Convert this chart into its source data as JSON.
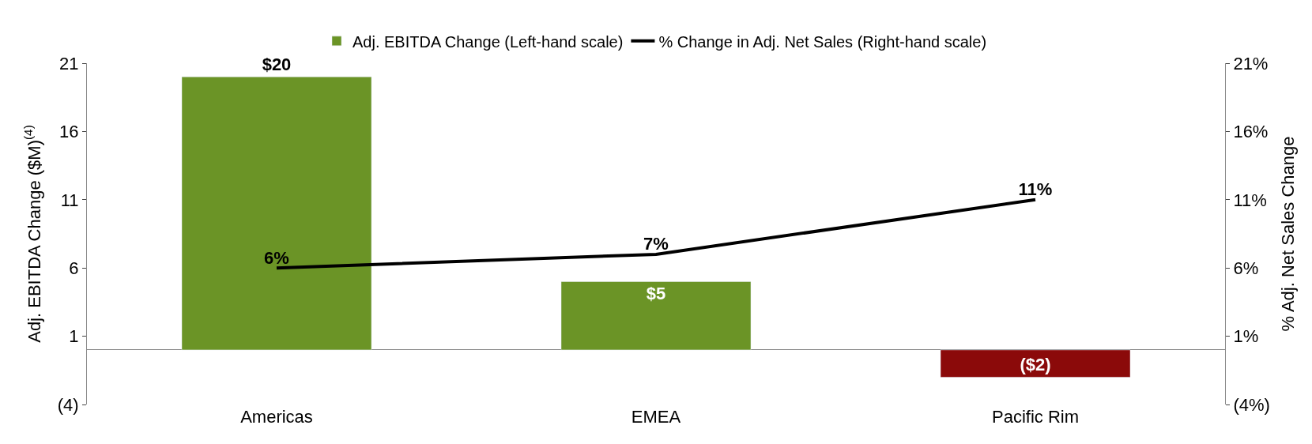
{
  "chart_data": {
    "type": "bar",
    "categories": [
      "Americas",
      "EMEA",
      "Pacific Rim"
    ],
    "ylabel": "Adj. EBITDA Change ($M)$^{(4)}$",
    "y2label": "% Adj. Net Sales Change",
    "series": [
      {
        "name": "Adj. EBITDA Change (Left-hand scale)",
        "colors": [
          "#6b9426",
          "#6b9426",
          "#8b0a0a"
        ],
        "values": [
          20,
          5,
          -2
        ],
        "value_labels": [
          "$20",
          "$5",
          "($2)"
        ]
      },
      {
        "name": "% Change in Adj. Net Sales (Right-hand scale)",
        "type": "line",
        "axis": "y2",
        "color": "#000000",
        "values": [
          6,
          7,
          11
        ],
        "value_labels": [
          "6%",
          "7%",
          "11%"
        ]
      }
    ],
    "ylim": [
      -4,
      21
    ],
    "yticks": [
      {
        "value": -4,
        "label": "(4)"
      },
      1,
      6,
      11,
      16,
      21
    ],
    "y2lim": [
      -4,
      21
    ],
    "y2ticks": [
      {
        "value": -4,
        "label": "(4%)"
      },
      {
        "value": 1,
        "label": "1%"
      },
      {
        "value": 6,
        "label": "6%"
      },
      {
        "value": 11,
        "label": "11%"
      },
      {
        "value": 16,
        "label": "16%"
      },
      {
        "value": 21,
        "label": "21%"
      }
    ],
    "legend": "top",
    "marker": "none",
    "line_style": "solid"
  }
}
